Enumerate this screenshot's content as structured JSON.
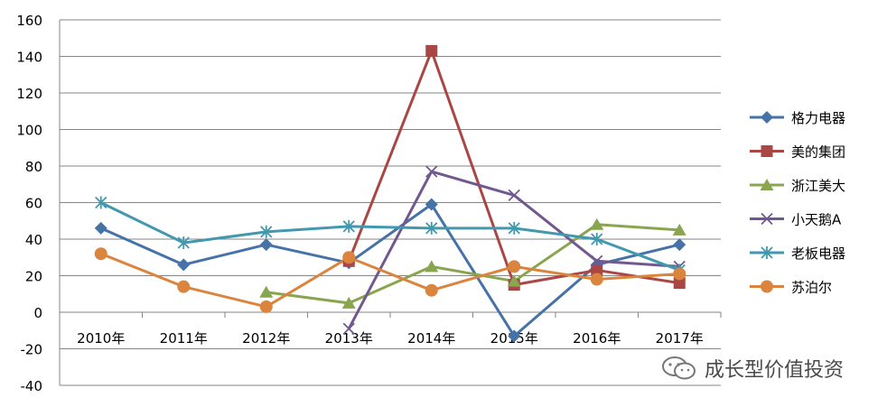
{
  "chart_data": {
    "type": "line",
    "categories": [
      "2010年",
      "2011年",
      "2012年",
      "2013年",
      "2014年",
      "2015年",
      "2016年",
      "2017年"
    ],
    "ylim": [
      -40,
      160
    ],
    "yticks": [
      160,
      140,
      120,
      100,
      80,
      60,
      40,
      20,
      0,
      -20,
      -40
    ],
    "grid": "horizontal",
    "legend": "right",
    "series": [
      {
        "name": "格力电器",
        "color": "#4572A7",
        "marker": "diamond",
        "values": [
          46,
          26,
          37,
          27,
          59,
          -13,
          26,
          37
        ]
      },
      {
        "name": "美的集团",
        "color": "#AA4643",
        "marker": "square",
        "values": [
          null,
          null,
          null,
          28,
          143,
          15,
          23,
          16
        ]
      },
      {
        "name": "浙江美大",
        "color": "#89A54E",
        "marker": "triangle",
        "values": [
          null,
          null,
          11,
          5,
          25,
          17,
          48,
          45
        ]
      },
      {
        "name": "小天鹅A",
        "color": "#71588F",
        "marker": "x",
        "values": [
          null,
          null,
          null,
          -9,
          77,
          64,
          28,
          25
        ]
      },
      {
        "name": "老板电器",
        "color": "#4198AF",
        "marker": "star",
        "values": [
          60,
          38,
          44,
          47,
          46,
          46,
          40,
          23
        ]
      },
      {
        "name": "苏泊尔",
        "color": "#DB843D",
        "marker": "circle",
        "values": [
          32,
          14,
          3,
          30,
          12,
          25,
          18,
          21
        ]
      }
    ]
  },
  "watermark": {
    "icon": "wechat-icon",
    "text": "成长型价值投资"
  }
}
